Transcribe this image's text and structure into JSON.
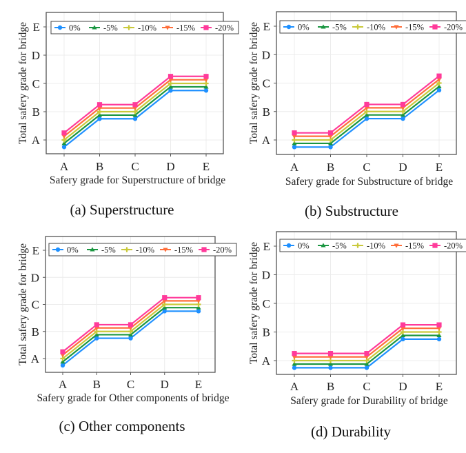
{
  "figure": {
    "legend": [
      {
        "name": "0%",
        "color": "#1E90FF",
        "marker": "circle"
      },
      {
        "name": "-5%",
        "color": "#1A9641",
        "marker": "triangle-up"
      },
      {
        "name": "-10%",
        "color": "#C9C93A",
        "marker": "plus"
      },
      {
        "name": "-15%",
        "color": "#FF6E3A",
        "marker": "triangle-down"
      },
      {
        "name": "-20%",
        "color": "#FF3A9A",
        "marker": "square"
      }
    ]
  },
  "chart_data": [
    {
      "id": "a",
      "type": "line",
      "caption": "(a) Superstructure",
      "xlabel": "Safery grade for Superstructure of bridge",
      "ylabel": "Total safery grade for bridge",
      "categories": [
        "A",
        "B",
        "C",
        "D",
        "E"
      ],
      "y_ticks": [
        "A",
        "B",
        "C",
        "D",
        "E"
      ],
      "ylim": [
        0.5,
        5.25
      ],
      "grid": true,
      "legend_position": "top",
      "series": [
        {
          "name": "0%",
          "values": [
            0.75,
            1.75,
            1.75,
            2.75,
            2.75
          ]
        },
        {
          "name": "-5%",
          "values": [
            0.88,
            1.88,
            1.88,
            2.88,
            2.88
          ]
        },
        {
          "name": "-10%",
          "values": [
            1.0,
            2.0,
            2.0,
            3.0,
            3.0
          ]
        },
        {
          "name": "-15%",
          "values": [
            1.13,
            2.13,
            2.13,
            3.13,
            3.13
          ]
        },
        {
          "name": "-20%",
          "values": [
            1.25,
            2.25,
            2.25,
            3.25,
            3.25
          ]
        }
      ]
    },
    {
      "id": "b",
      "type": "line",
      "caption": "(b) Substructure",
      "xlabel": "Safery grade for Substructure of bridge",
      "ylabel": "Total safery grade for bridge",
      "categories": [
        "A",
        "B",
        "C",
        "D",
        "E"
      ],
      "y_ticks": [
        "A",
        "B",
        "C",
        "D",
        "E"
      ],
      "ylim": [
        0.5,
        5.25
      ],
      "grid": true,
      "legend_position": "top",
      "series": [
        {
          "name": "0%",
          "values": [
            0.75,
            0.75,
            1.75,
            1.75,
            2.75
          ]
        },
        {
          "name": "-5%",
          "values": [
            0.88,
            0.88,
            1.88,
            1.88,
            2.88
          ]
        },
        {
          "name": "-10%",
          "values": [
            1.0,
            1.0,
            2.0,
            2.0,
            3.0
          ]
        },
        {
          "name": "-15%",
          "values": [
            1.13,
            1.13,
            2.13,
            2.13,
            3.13
          ]
        },
        {
          "name": "-20%",
          "values": [
            1.25,
            1.25,
            2.25,
            2.25,
            3.25
          ]
        }
      ]
    },
    {
      "id": "c",
      "type": "line",
      "caption": "(c) Other components",
      "xlabel": "Safery grade for Other components of bridge",
      "ylabel": "Total safery grade for bridge",
      "categories": [
        "A",
        "B",
        "C",
        "D",
        "E"
      ],
      "y_ticks": [
        "A",
        "B",
        "C",
        "D",
        "E"
      ],
      "ylim": [
        0.5,
        5.25
      ],
      "grid": true,
      "legend_position": "top",
      "series": [
        {
          "name": "0%",
          "values": [
            0.75,
            1.75,
            1.75,
            2.75,
            2.75
          ]
        },
        {
          "name": "-5%",
          "values": [
            0.88,
            1.88,
            1.88,
            2.88,
            2.88
          ]
        },
        {
          "name": "-10%",
          "values": [
            1.0,
            2.0,
            2.0,
            3.0,
            3.0
          ]
        },
        {
          "name": "-15%",
          "values": [
            1.13,
            2.13,
            2.13,
            3.13,
            3.13
          ]
        },
        {
          "name": "-20%",
          "values": [
            1.25,
            2.25,
            2.25,
            3.25,
            3.25
          ]
        }
      ]
    },
    {
      "id": "d",
      "type": "line",
      "caption": "(d) Durability",
      "xlabel": "Safery grade for Durability of bridge",
      "ylabel": "Total safery grade for bridge",
      "categories": [
        "A",
        "B",
        "C",
        "D",
        "E"
      ],
      "y_ticks": [
        "A",
        "B",
        "C",
        "D",
        "E"
      ],
      "ylim": [
        0.5,
        5.25
      ],
      "grid": true,
      "legend_position": "top",
      "series": [
        {
          "name": "0%",
          "values": [
            0.75,
            0.75,
            0.75,
            1.75,
            1.75
          ]
        },
        {
          "name": "-5%",
          "values": [
            0.88,
            0.88,
            0.88,
            1.88,
            1.88
          ]
        },
        {
          "name": "-10%",
          "values": [
            1.0,
            1.0,
            1.0,
            2.0,
            2.0
          ]
        },
        {
          "name": "-15%",
          "values": [
            1.13,
            1.13,
            1.13,
            2.13,
            2.13
          ]
        },
        {
          "name": "-20%",
          "values": [
            1.25,
            1.25,
            1.25,
            2.25,
            2.25
          ]
        }
      ]
    }
  ]
}
